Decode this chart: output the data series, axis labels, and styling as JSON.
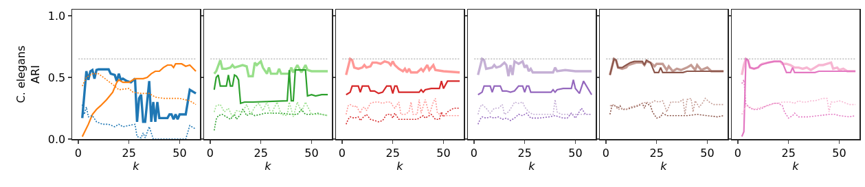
{
  "chart_data": [
    {
      "type": "line",
      "ylabel": "C. elegans\nARI",
      "xlabel": "k",
      "xlim": [
        -3,
        60
      ],
      "ylim": [
        0,
        1.05
      ],
      "xticks": [
        0,
        25,
        50
      ],
      "yticks": [
        {
          "value": 0,
          "label": "0.0"
        },
        {
          "value": 0.5,
          "label": "0.5"
        },
        {
          "value": 1,
          "label": "1.0"
        }
      ],
      "marker": "none",
      "ref_lines": [
        {
          "axis": "y",
          "value": 0.65,
          "color": "#808080",
          "line_style": "dotted"
        }
      ],
      "series": [
        {
          "color": "#1f77b4",
          "line_style": "solid",
          "x": [
            2,
            4,
            5,
            6,
            7,
            8,
            9,
            10,
            15,
            16,
            18,
            19,
            20,
            21,
            22,
            24,
            26,
            28,
            29,
            30,
            31,
            32,
            33,
            35,
            36,
            37,
            38,
            39,
            40,
            44,
            45,
            46,
            47,
            48,
            49,
            50,
            53,
            55,
            58
          ],
          "values": [
            0.17,
            0.55,
            0.48,
            0.55,
            0.56,
            0.49,
            0.56,
            0.565,
            0.565,
            0.53,
            0.52,
            0.47,
            0.53,
            0.48,
            0.49,
            0.47,
            0.46,
            0.49,
            0.14,
            0.33,
            0.36,
            0.14,
            0.14,
            0.47,
            0.14,
            0.3,
            0.14,
            0.3,
            0.17,
            0.17,
            0.2,
            0.2,
            0.16,
            0.2,
            0.16,
            0.2,
            0.2,
            0.4,
            0.37
          ]
        },
        {
          "color": "#ff7f0e",
          "line_style": "solid",
          "x": [
            2,
            5,
            7,
            9,
            11,
            14,
            17,
            19,
            20,
            22,
            25,
            28,
            30,
            32,
            34,
            36,
            38,
            40,
            42,
            44,
            46,
            47,
            48,
            51,
            53,
            55,
            58
          ],
          "values": [
            0.02,
            0.12,
            0.2,
            0.24,
            0.27,
            0.32,
            0.38,
            0.46,
            0.48,
            0.46,
            0.46,
            0.49,
            0.49,
            0.49,
            0.5,
            0.53,
            0.55,
            0.55,
            0.58,
            0.6,
            0.6,
            0.58,
            0.61,
            0.61,
            0.59,
            0.6,
            0.55
          ]
        },
        {
          "color": "#1f77b4",
          "line_style": "dotted",
          "x": [
            2,
            3,
            4,
            5,
            7,
            9,
            12,
            15,
            18,
            20,
            22,
            25,
            28,
            29,
            31,
            32,
            33,
            35,
            37,
            40,
            45,
            50,
            53,
            55,
            58
          ],
          "values": [
            0.28,
            0.2,
            0.26,
            0.18,
            0.19,
            0.14,
            0.12,
            0.12,
            0.1,
            0.12,
            0.1,
            0.11,
            0.12,
            0.02,
            0.01,
            0.05,
            0.01,
            0.1,
            0,
            0,
            0,
            0,
            0,
            0.11,
            0.08
          ]
        },
        {
          "color": "#ff7f0e",
          "line_style": "dotted",
          "x": [
            2,
            4,
            7,
            10,
            14,
            18,
            20,
            25,
            27,
            31,
            35,
            38,
            42,
            46,
            50,
            55,
            58
          ],
          "values": [
            0.43,
            0.5,
            0.53,
            0.53,
            0.48,
            0.43,
            0.4,
            0.41,
            0.38,
            0.37,
            0.37,
            0.34,
            0.33,
            0.33,
            0.33,
            0.31,
            0.28
          ]
        }
      ]
    },
    {
      "type": "line",
      "xlabel": "k",
      "xlim": [
        -3,
        60
      ],
      "ylim": [
        0,
        1.05
      ],
      "xticks": [
        0,
        25,
        50
      ],
      "yticks": [
        0,
        0.5,
        1
      ],
      "tick_labels": "x",
      "marker": "none",
      "ref_lines": [
        {
          "axis": "y",
          "value": 0.65,
          "color": "#808080",
          "line_style": "dotted"
        }
      ],
      "series": [
        {
          "color": "#98df8a",
          "line_style": "solid",
          "x": [
            2,
            3,
            5,
            6,
            8,
            10,
            11,
            12,
            14,
            16,
            18,
            19,
            21,
            22,
            23,
            25,
            26,
            28,
            29,
            30,
            33,
            34,
            35,
            39,
            40,
            41,
            43,
            45,
            47,
            48,
            50,
            58
          ],
          "values": [
            0.53,
            0.55,
            0.64,
            0.57,
            0.57,
            0.58,
            0.6,
            0.58,
            0.59,
            0.6,
            0.59,
            0.51,
            0.51,
            0.62,
            0.6,
            0.63,
            0.58,
            0.53,
            0.58,
            0.53,
            0.53,
            0.57,
            0.53,
            0.53,
            0.58,
            0.54,
            0.6,
            0.54,
            0.6,
            0.56,
            0.55,
            0.55
          ]
        },
        {
          "color": "#2ca02c",
          "line_style": "solid",
          "x": [
            2,
            3,
            4,
            5,
            8,
            9,
            10,
            11,
            12,
            13,
            14,
            15,
            17,
            20,
            21,
            38,
            39,
            40,
            41,
            42,
            47,
            48,
            50,
            52,
            55,
            58
          ],
          "values": [
            0.4,
            0.5,
            0.52,
            0.43,
            0.43,
            0.52,
            0.43,
            0.43,
            0.52,
            0.51,
            0.48,
            0.29,
            0.3,
            0.3,
            0.3,
            0.31,
            0.56,
            0.31,
            0.31,
            0.56,
            0.56,
            0.35,
            0.36,
            0.35,
            0.36,
            0.36
          ]
        },
        {
          "color": "#2ca02c",
          "line_style": "dotted",
          "x": [
            2,
            3,
            4,
            6,
            8,
            10,
            12,
            13,
            15,
            16,
            17,
            18,
            20,
            22,
            25,
            27,
            30,
            35,
            40,
            43,
            45,
            47,
            50,
            53,
            55,
            58
          ],
          "values": [
            0.07,
            0.16,
            0.19,
            0.2,
            0.18,
            0.16,
            0.2,
            0.16,
            0.2,
            0.24,
            0.22,
            0.19,
            0.21,
            0.19,
            0.2,
            0.21,
            0.21,
            0.21,
            0.2,
            0.2,
            0.24,
            0.2,
            0.2,
            0.21,
            0.2,
            0.19
          ]
        },
        {
          "color": "#98df8a",
          "line_style": "dotted",
          "x": [
            2,
            3,
            5,
            7,
            9,
            11,
            13,
            16,
            18,
            20,
            22,
            24,
            26,
            28,
            30,
            33,
            35,
            38,
            39,
            41,
            43,
            45,
            47,
            50,
            55,
            58
          ],
          "values": [
            0.22,
            0.27,
            0.28,
            0.22,
            0.25,
            0.18,
            0.23,
            0.22,
            0.28,
            0.2,
            0.26,
            0.29,
            0.23,
            0.3,
            0.2,
            0.3,
            0.2,
            0.19,
            0.3,
            0.18,
            0.3,
            0.22,
            0.3,
            0.2,
            0.2,
            0.19
          ]
        }
      ]
    },
    {
      "type": "line",
      "xlabel": "k",
      "xlim": [
        -3,
        60
      ],
      "ylim": [
        0,
        1.05
      ],
      "xticks": [
        0,
        25,
        50
      ],
      "yticks": [
        0,
        0.5,
        1
      ],
      "tick_labels": "x",
      "marker": "none",
      "ref_lines": [
        {
          "axis": "y",
          "value": 0.65,
          "color": "#808080",
          "line_style": "dotted"
        }
      ],
      "series": [
        {
          "color": "#ff9896",
          "line_style": "solid",
          "x": [
            2,
            4,
            5,
            6,
            8,
            10,
            11,
            12,
            14,
            15,
            17,
            19,
            21,
            23,
            24,
            25,
            26,
            28,
            30,
            31,
            32,
            33,
            34,
            37,
            39,
            40,
            42,
            43,
            45,
            46,
            50,
            58
          ],
          "values": [
            0.52,
            0.65,
            0.64,
            0.58,
            0.57,
            0.58,
            0.6,
            0.58,
            0.59,
            0.62,
            0.62,
            0.61,
            0.63,
            0.62,
            0.6,
            0.63,
            0.6,
            0.57,
            0.55,
            0.57,
            0.54,
            0.57,
            0.54,
            0.54,
            0.57,
            0.55,
            0.6,
            0.56,
            0.6,
            0.56,
            0.55,
            0.54
          ]
        },
        {
          "color": "#d62728",
          "line_style": "solid",
          "x": [
            2,
            4,
            5,
            8,
            9,
            10,
            13,
            14,
            16,
            18,
            20,
            22,
            24,
            25,
            26,
            27,
            28,
            32,
            38,
            39,
            40,
            41,
            44,
            48,
            49,
            50,
            52,
            55,
            58
          ],
          "values": [
            0.36,
            0.38,
            0.43,
            0.43,
            0.38,
            0.43,
            0.43,
            0.39,
            0.39,
            0.37,
            0.38,
            0.43,
            0.43,
            0.37,
            0.43,
            0.43,
            0.38,
            0.38,
            0.38,
            0.4,
            0.38,
            0.4,
            0.41,
            0.41,
            0.47,
            0.41,
            0.47,
            0.47,
            0.47
          ]
        },
        {
          "color": "#d62728",
          "line_style": "dotted",
          "x": [
            2,
            3,
            4,
            6,
            8,
            9,
            10,
            12,
            14,
            16,
            18,
            20,
            22,
            24,
            25,
            26,
            28,
            32,
            37,
            40,
            41,
            44,
            46,
            48,
            49,
            50,
            52,
            55,
            58
          ],
          "values": [
            0.12,
            0.16,
            0.18,
            0.17,
            0.18,
            0.15,
            0.17,
            0.2,
            0.16,
            0.15,
            0.14,
            0.15,
            0.2,
            0.2,
            0.17,
            0.21,
            0.16,
            0.16,
            0.16,
            0.19,
            0.17,
            0.2,
            0.16,
            0.16,
            0.22,
            0.18,
            0.22,
            0.25,
            0.25
          ]
        },
        {
          "color": "#ff9896",
          "line_style": "dotted",
          "x": [
            2,
            3,
            4,
            6,
            7,
            8,
            9,
            10,
            11,
            12,
            14,
            16,
            18,
            20,
            22,
            24,
            25,
            26,
            28,
            29,
            31,
            33,
            34,
            35,
            37,
            38,
            39,
            41,
            43,
            45,
            46,
            47,
            50,
            55,
            58
          ],
          "values": [
            0.2,
            0.27,
            0.28,
            0.26,
            0.27,
            0.24,
            0.21,
            0.25,
            0.26,
            0.23,
            0.29,
            0.3,
            0.3,
            0.29,
            0.3,
            0.3,
            0.27,
            0.25,
            0.3,
            0.2,
            0.2,
            0.22,
            0.3,
            0.2,
            0.2,
            0.32,
            0.21,
            0.32,
            0.2,
            0.3,
            0.33,
            0.21,
            0.19,
            0.19,
            0.19
          ]
        }
      ]
    },
    {
      "type": "line",
      "xlabel": "k",
      "xlim": [
        -3,
        60
      ],
      "ylim": [
        0,
        1.05
      ],
      "xticks": [
        0,
        25,
        50
      ],
      "yticks": [
        0,
        0.5,
        1
      ],
      "tick_labels": "x",
      "marker": "none",
      "ref_lines": [
        {
          "axis": "y",
          "value": 0.65,
          "color": "#808080",
          "line_style": "dotted"
        }
      ],
      "series": [
        {
          "color": "#c5b0d5",
          "line_style": "solid",
          "x": [
            2,
            4,
            5,
            6,
            9,
            10,
            11,
            13,
            15,
            16,
            17,
            18,
            19,
            20,
            21,
            22,
            24,
            25,
            26,
            27,
            28,
            29,
            33,
            39,
            40,
            41,
            45,
            50,
            58
          ],
          "values": [
            0.52,
            0.65,
            0.64,
            0.57,
            0.58,
            0.6,
            0.58,
            0.59,
            0.62,
            0.6,
            0.51,
            0.6,
            0.52,
            0.63,
            0.62,
            0.61,
            0.63,
            0.58,
            0.6,
            0.55,
            0.57,
            0.54,
            0.54,
            0.54,
            0.58,
            0.55,
            0.56,
            0.55,
            0.55
          ]
        },
        {
          "color": "#9467bd",
          "line_style": "solid",
          "x": [
            2,
            4,
            5,
            8,
            9,
            10,
            13,
            14,
            16,
            18,
            20,
            22,
            24,
            25,
            26,
            27,
            28,
            32,
            38,
            39,
            40,
            41,
            44,
            48,
            49,
            50,
            52,
            54,
            58
          ],
          "values": [
            0.36,
            0.38,
            0.43,
            0.43,
            0.38,
            0.43,
            0.43,
            0.39,
            0.39,
            0.38,
            0.39,
            0.43,
            0.43,
            0.38,
            0.43,
            0.43,
            0.38,
            0.38,
            0.38,
            0.4,
            0.38,
            0.4,
            0.41,
            0.41,
            0.48,
            0.41,
            0.37,
            0.47,
            0.36
          ]
        },
        {
          "color": "#9467bd",
          "line_style": "dotted",
          "x": [
            2,
            3,
            4,
            6,
            8,
            10,
            12,
            14,
            16,
            18,
            20,
            22,
            24,
            26,
            28,
            32,
            37,
            40,
            44,
            46,
            48,
            50,
            53,
            55,
            58
          ],
          "values": [
            0.12,
            0.16,
            0.18,
            0.17,
            0.18,
            0.17,
            0.18,
            0.16,
            0.17,
            0.15,
            0.17,
            0.2,
            0.19,
            0.21,
            0.17,
            0.17,
            0.18,
            0.19,
            0.17,
            0.17,
            0.21,
            0.17,
            0.25,
            0.2,
            0.2
          ]
        },
        {
          "color": "#c5b0d5",
          "line_style": "dotted",
          "x": [
            2,
            3,
            4,
            6,
            8,
            10,
            12,
            14,
            15,
            17,
            19,
            20,
            22,
            24,
            25,
            27,
            29,
            35,
            39,
            40,
            41,
            43,
            50,
            55,
            58
          ],
          "values": [
            0.2,
            0.26,
            0.28,
            0.25,
            0.21,
            0.25,
            0.25,
            0.28,
            0.2,
            0.22,
            0.27,
            0.3,
            0.29,
            0.3,
            0.26,
            0.22,
            0.2,
            0.2,
            0.2,
            0.32,
            0.22,
            0.2,
            0.2,
            0.2,
            0.2
          ]
        }
      ]
    },
    {
      "type": "line",
      "xlabel": "k",
      "xlim": [
        -3,
        60
      ],
      "ylim": [
        0,
        1.05
      ],
      "xticks": [
        0,
        25,
        50
      ],
      "yticks": [
        0,
        0.5,
        1
      ],
      "tick_labels": "x",
      "marker": "none",
      "ref_lines": [
        {
          "axis": "y",
          "value": 0.65,
          "color": "#808080",
          "line_style": "dotted"
        }
      ],
      "series": [
        {
          "color": "#c49c94",
          "line_style": "solid",
          "x": [
            2,
            4,
            5,
            6,
            8,
            10,
            11,
            13,
            15,
            18,
            19,
            20,
            22,
            24,
            25,
            28,
            30,
            31,
            33,
            35,
            37,
            40,
            42,
            44,
            45,
            47,
            50,
            52,
            58
          ],
          "values": [
            0.52,
            0.65,
            0.64,
            0.58,
            0.57,
            0.58,
            0.6,
            0.61,
            0.62,
            0.62,
            0.6,
            0.63,
            0.62,
            0.59,
            0.61,
            0.61,
            0.56,
            0.59,
            0.55,
            0.57,
            0.56,
            0.58,
            0.6,
            0.56,
            0.6,
            0.56,
            0.58,
            0.55,
            0.55
          ]
        },
        {
          "color": "#8c564b",
          "line_style": "solid",
          "x": [
            2,
            4,
            5,
            6,
            8,
            10,
            12,
            14,
            18,
            19,
            20,
            22,
            24,
            26,
            27,
            28,
            32,
            38,
            40,
            42,
            50,
            58
          ],
          "values": [
            0.52,
            0.65,
            0.64,
            0.58,
            0.58,
            0.6,
            0.62,
            0.63,
            0.63,
            0.6,
            0.64,
            0.62,
            0.54,
            0.54,
            0.58,
            0.54,
            0.54,
            0.54,
            0.55,
            0.55,
            0.55,
            0.55
          ]
        },
        {
          "color": "#8c564b",
          "line_style": "dotted",
          "x": [
            2,
            3,
            5,
            6,
            7,
            8,
            10,
            12,
            14,
            16,
            18,
            19,
            20,
            22,
            23,
            25,
            27,
            28,
            30,
            35,
            40,
            45,
            50,
            55,
            58
          ],
          "values": [
            0.2,
            0.27,
            0.27,
            0.25,
            0.27,
            0.24,
            0.24,
            0.25,
            0.26,
            0.27,
            0.29,
            0.25,
            0.29,
            0.27,
            0.22,
            0.17,
            0.18,
            0.21,
            0.19,
            0.19,
            0.19,
            0.2,
            0.19,
            0.18,
            0.19
          ]
        },
        {
          "color": "#c49c94",
          "line_style": "dotted",
          "x": [
            2,
            4,
            6,
            8,
            10,
            12,
            15,
            18,
            20,
            22,
            24,
            26,
            28,
            29,
            30,
            32,
            34,
            36,
            38,
            39,
            40,
            42,
            43,
            44,
            46,
            48,
            49,
            51,
            53,
            58
          ],
          "values": [
            0.27,
            0.28,
            0.24,
            0.25,
            0.24,
            0.26,
            0.27,
            0.29,
            0.3,
            0.29,
            0.31,
            0.3,
            0.31,
            0.27,
            0.22,
            0.3,
            0.3,
            0.3,
            0.32,
            0.2,
            0.32,
            0.33,
            0.22,
            0.31,
            0.26,
            0.3,
            0.33,
            0.3,
            0.28,
            0.28
          ]
        }
      ]
    },
    {
      "type": "line",
      "xlabel": "k",
      "xlim": [
        -3,
        60
      ],
      "ylim": [
        0,
        1.05
      ],
      "xticks": [
        0,
        25,
        50
      ],
      "yticks": [
        0,
        0.5,
        1
      ],
      "tick_labels": "x",
      "marker": "none",
      "ref_lines": [
        {
          "axis": "y",
          "value": 0.65,
          "color": "#808080",
          "line_style": "dotted"
        }
      ],
      "series": [
        {
          "color": "#f7b6d2",
          "line_style": "solid",
          "x": [
            2,
            3,
            4,
            5,
            6,
            8,
            10,
            12,
            15,
            18,
            21,
            22,
            24,
            26,
            28,
            30,
            32,
            34,
            36,
            38,
            40,
            42,
            44,
            46,
            47,
            49,
            50,
            52,
            54,
            58
          ],
          "values": [
            0.52,
            0.6,
            0.65,
            0.64,
            0.58,
            0.57,
            0.58,
            0.61,
            0.62,
            0.63,
            0.63,
            0.61,
            0.61,
            0.6,
            0.58,
            0.58,
            0.57,
            0.58,
            0.56,
            0.58,
            0.6,
            0.6,
            0.61,
            0.62,
            0.57,
            0.58,
            0.56,
            0.57,
            0.55,
            0.55
          ]
        },
        {
          "color": "#e377c2",
          "line_style": "solid",
          "x": [
            2,
            3,
            4,
            5,
            6,
            8,
            10,
            11,
            13,
            15,
            18,
            21,
            22,
            24,
            26,
            27,
            28,
            32,
            38,
            40,
            42,
            50,
            58
          ],
          "values": [
            0.02,
            0.06,
            0.65,
            0.64,
            0.58,
            0.57,
            0.58,
            0.6,
            0.61,
            0.62,
            0.63,
            0.63,
            0.62,
            0.54,
            0.54,
            0.58,
            0.54,
            0.54,
            0.54,
            0.55,
            0.55,
            0.55,
            0.55
          ]
        },
        {
          "color": "#e377c2",
          "line_style": "dotted",
          "x": [
            2,
            3,
            4,
            5,
            6,
            8,
            10,
            12,
            14,
            16,
            18,
            20,
            22,
            23,
            25,
            27,
            28,
            30,
            35,
            40,
            45,
            48,
            50,
            55,
            58
          ],
          "values": [
            0.45,
            0.48,
            0.28,
            0.27,
            0.25,
            0.24,
            0.24,
            0.25,
            0.27,
            0.28,
            0.29,
            0.29,
            0.27,
            0.22,
            0.17,
            0.19,
            0.21,
            0.18,
            0.18,
            0.19,
            0.2,
            0.2,
            0.19,
            0.18,
            0.19
          ]
        },
        {
          "color": "#f7b6d2",
          "line_style": "dotted",
          "x": [
            2,
            3,
            4,
            6,
            8,
            10,
            12,
            15,
            18,
            20,
            22,
            24,
            26,
            28,
            30,
            32,
            34,
            36,
            38,
            40,
            42,
            44,
            45,
            46,
            48,
            50,
            52,
            55,
            58
          ],
          "values": [
            0.2,
            0.23,
            0.27,
            0.26,
            0.24,
            0.25,
            0.26,
            0.27,
            0.29,
            0.29,
            0.3,
            0.3,
            0.3,
            0.29,
            0.31,
            0.3,
            0.3,
            0.31,
            0.31,
            0.32,
            0.33,
            0.33,
            0.22,
            0.3,
            0.3,
            0.31,
            0.3,
            0.28,
            0.28
          ]
        }
      ]
    }
  ]
}
